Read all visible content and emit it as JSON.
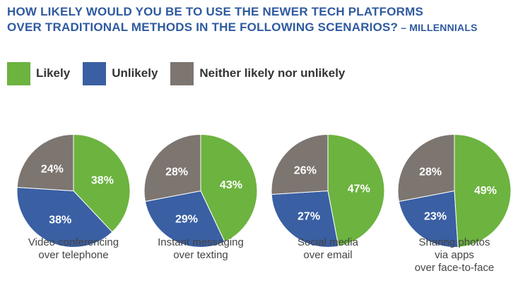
{
  "title": {
    "line1": "HOW LIKELY WOULD YOU BE TO USE THE NEWER TECH PLATFORMS",
    "line2": "OVER TRADITIONAL METHODS IN THE FOLLOWING SCENARIOS?",
    "suffix": " – MILLENNIALS"
  },
  "legend": {
    "items": [
      {
        "label": "Likely",
        "color": "#6cb33f"
      },
      {
        "label": "Unlikely",
        "color": "#3a5fa3"
      },
      {
        "label": "Neither likely nor unlikely",
        "color": "#7d7570"
      }
    ]
  },
  "chart_data": {
    "type": "pie",
    "categories": [
      "Likely",
      "Unlikely",
      "Neither likely nor unlikely"
    ],
    "colors": [
      "#6cb33f",
      "#3a5fa3",
      "#7d7570"
    ],
    "legend_position": "top-left",
    "pies": [
      {
        "caption": [
          "Video conferencing",
          "over telephone"
        ],
        "values": [
          38,
          38,
          24
        ],
        "labels": [
          "38%",
          "38%",
          "24%"
        ]
      },
      {
        "caption": [
          "Instant messaging",
          "over texting"
        ],
        "values": [
          43,
          29,
          28
        ],
        "labels": [
          "43%",
          "29%",
          "28%"
        ]
      },
      {
        "caption": [
          "Social media",
          "over email"
        ],
        "values": [
          47,
          27,
          26
        ],
        "labels": [
          "47%",
          "27%",
          "26%"
        ]
      },
      {
        "caption": [
          "Sharing photos",
          "via apps",
          "over face-to-face"
        ],
        "values": [
          49,
          23,
          28
        ],
        "labels": [
          "49%",
          "23%",
          "28%"
        ]
      }
    ]
  }
}
